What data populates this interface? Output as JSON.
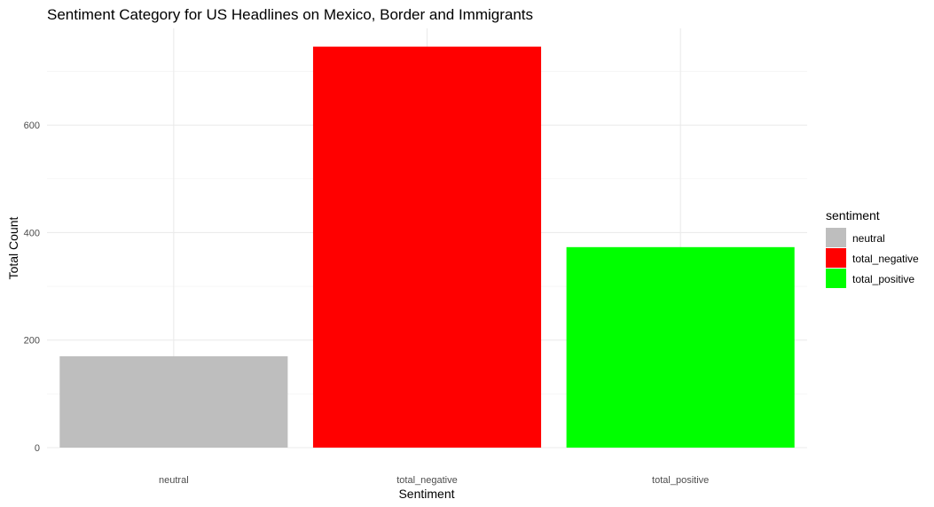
{
  "chart_data": {
    "type": "bar",
    "title": "Sentiment Category for US Headlines on Mexico, Border and Immigrants",
    "xlabel": "Sentiment",
    "ylabel": "Total Count",
    "categories": [
      "neutral",
      "total_negative",
      "total_positive"
    ],
    "values": [
      170,
      746,
      373
    ],
    "colors": [
      "#bebebe",
      "#ff0000",
      "#00ff00"
    ],
    "ylim": [
      0,
      780
    ],
    "y_ticks": [
      0,
      200,
      400,
      600
    ],
    "y_tick_labels": [
      "0",
      "200",
      "400",
      "600"
    ],
    "grid": true,
    "legend": {
      "title": "sentiment",
      "position": "right",
      "entries": [
        "neutral",
        "total_negative",
        "total_positive"
      ]
    }
  }
}
